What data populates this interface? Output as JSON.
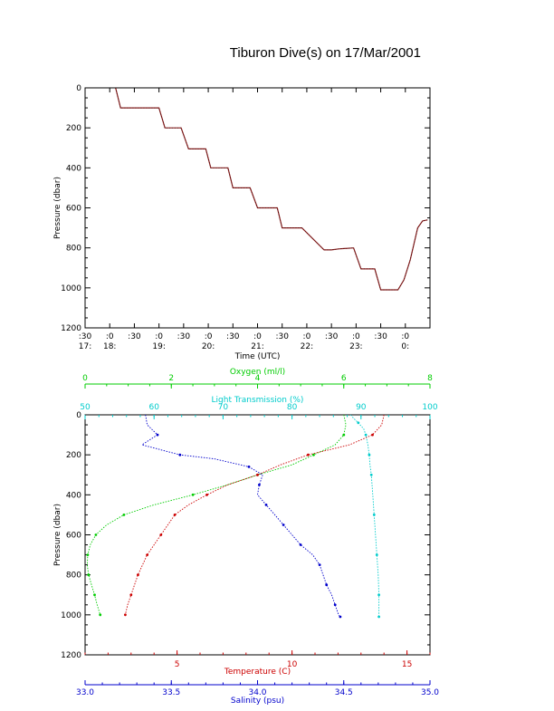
{
  "title": "Tiburon Dive(s) on 17/Mar/2001",
  "chart_data": [
    {
      "type": "line",
      "xlabel": "Time (UTC)",
      "ylabel": "Pressure (dbar)",
      "xlim": [
        "17:30",
        "00:30"
      ],
      "ylim": [
        1200,
        0
      ],
      "x_ticks": [
        {
          "top": ":30",
          "bottom": "17:"
        },
        {
          "top": ":0",
          "bottom": "18:"
        },
        {
          "top": ":30",
          "bottom": ""
        },
        {
          "top": ":0",
          "bottom": "19:"
        },
        {
          "top": ":30",
          "bottom": ""
        },
        {
          "top": ":0",
          "bottom": "20:"
        },
        {
          "top": ":30",
          "bottom": ""
        },
        {
          "top": ":0",
          "bottom": "21:"
        },
        {
          "top": ":30",
          "bottom": ""
        },
        {
          "top": ":0",
          "bottom": "22:"
        },
        {
          "top": ":30",
          "bottom": ""
        },
        {
          "top": ":0",
          "bottom": "23:"
        },
        {
          "top": ":30",
          "bottom": ""
        },
        {
          "top": ":0",
          "bottom": "0:"
        }
      ],
      "y_ticks": [
        "0",
        "200",
        "400",
        "600",
        "800",
        "1000",
        "1200"
      ],
      "series": [
        {
          "color": "#8b1a1a",
          "points": [
            [
              18.12,
              0
            ],
            [
              18.22,
              100
            ],
            [
              19.0,
              100
            ],
            [
              19.12,
              200
            ],
            [
              19.45,
              200
            ],
            [
              19.6,
              305
            ],
            [
              19.95,
              305
            ],
            [
              20.05,
              400
            ],
            [
              20.4,
              400
            ],
            [
              20.5,
              500
            ],
            [
              20.85,
              500
            ],
            [
              21.0,
              600
            ],
            [
              21.4,
              600
            ],
            [
              21.5,
              700
            ],
            [
              21.9,
              700
            ],
            [
              22.35,
              810
            ],
            [
              22.5,
              810
            ],
            [
              22.65,
              805
            ],
            [
              22.95,
              800
            ],
            [
              23.1,
              905
            ],
            [
              23.38,
              905
            ],
            [
              23.5,
              1010
            ],
            [
              23.85,
              1010
            ],
            [
              23.97,
              960
            ],
            [
              24.1,
              860
            ],
            [
              24.25,
              700
            ],
            [
              24.35,
              665
            ],
            [
              24.45,
              660
            ]
          ]
        }
      ]
    },
    {
      "type": "line",
      "ylabel": "Pressure (dbar)",
      "ylim": [
        1200,
        0
      ],
      "y_ticks": [
        "0",
        "200",
        "400",
        "600",
        "800",
        "1000",
        "1200"
      ],
      "axes": {
        "oxygen": {
          "label": "Oxygen (ml/l)",
          "color": "#00cc00",
          "range": [
            0,
            8
          ],
          "ticks": [
            "0",
            "2",
            "4",
            "6",
            "8"
          ]
        },
        "transmission": {
          "label": "Light Transmission (%)",
          "color": "#00cccc",
          "range": [
            50,
            100
          ],
          "ticks": [
            "50",
            "60",
            "70",
            "80",
            "90",
            "100"
          ]
        },
        "temperature": {
          "label": "Temperature (C)",
          "color": "#cc0000",
          "range": [
            1,
            16
          ],
          "ticks": [
            "5",
            "10",
            "15"
          ]
        },
        "salinity": {
          "label": "Salinity (psu)",
          "color": "#0000cc",
          "range": [
            33.0,
            35.0
          ],
          "ticks": [
            "33.0",
            "33.5",
            "34.0",
            "34.5",
            "35.0"
          ]
        }
      },
      "series": [
        {
          "name": "Oxygen (ml/l)",
          "axis": "oxygen",
          "color": "#00cc00",
          "points": [
            [
              6.0,
              0
            ],
            [
              6.05,
              50
            ],
            [
              6.0,
              100
            ],
            [
              5.8,
              150
            ],
            [
              5.3,
              200
            ],
            [
              4.8,
              250
            ],
            [
              4.0,
              300
            ],
            [
              3.3,
              350
            ],
            [
              2.5,
              400
            ],
            [
              1.6,
              450
            ],
            [
              0.9,
              500
            ],
            [
              0.5,
              550
            ],
            [
              0.25,
              600
            ],
            [
              0.12,
              650
            ],
            [
              0.06,
              700
            ],
            [
              0.05,
              750
            ],
            [
              0.08,
              800
            ],
            [
              0.15,
              850
            ],
            [
              0.22,
              900
            ],
            [
              0.28,
              950
            ],
            [
              0.35,
              1000
            ],
            [
              0.37,
              1010
            ]
          ]
        },
        {
          "name": "Light Transmission (%)",
          "axis": "transmission",
          "color": "#00cccc",
          "points": [
            [
              88.5,
              0
            ],
            [
              89.0,
              20
            ],
            [
              89.6,
              40
            ],
            [
              90.4,
              70
            ],
            [
              90.7,
              100
            ],
            [
              91.0,
              150
            ],
            [
              91.2,
              200
            ],
            [
              91.3,
              250
            ],
            [
              91.5,
              300
            ],
            [
              91.7,
              400
            ],
            [
              91.9,
              500
            ],
            [
              92.1,
              600
            ],
            [
              92.3,
              700
            ],
            [
              92.5,
              800
            ],
            [
              92.6,
              900
            ],
            [
              92.6,
              1000
            ],
            [
              92.6,
              1010
            ]
          ]
        },
        {
          "name": "Temperature (C)",
          "axis": "temperature",
          "color": "#cc0000",
          "points": [
            [
              14.0,
              0
            ],
            [
              13.9,
              50
            ],
            [
              13.5,
              100
            ],
            [
              12.5,
              150
            ],
            [
              10.7,
              200
            ],
            [
              9.5,
              250
            ],
            [
              8.5,
              300
            ],
            [
              7.2,
              350
            ],
            [
              6.3,
              400
            ],
            [
              5.5,
              450
            ],
            [
              4.9,
              500
            ],
            [
              4.6,
              550
            ],
            [
              4.3,
              600
            ],
            [
              4.0,
              650
            ],
            [
              3.7,
              700
            ],
            [
              3.5,
              750
            ],
            [
              3.3,
              800
            ],
            [
              3.15,
              850
            ],
            [
              3.0,
              900
            ],
            [
              2.85,
              950
            ],
            [
              2.75,
              1000
            ],
            [
              2.72,
              1010
            ]
          ]
        },
        {
          "name": "Salinity (psu)",
          "axis": "salinity",
          "color": "#0000cc",
          "points": [
            [
              33.35,
              0
            ],
            [
              33.36,
              50
            ],
            [
              33.42,
              100
            ],
            [
              33.33,
              150
            ],
            [
              33.55,
              200
            ],
            [
              33.75,
              220
            ],
            [
              33.95,
              260
            ],
            [
              34.03,
              300
            ],
            [
              34.01,
              350
            ],
            [
              34.0,
              400
            ],
            [
              34.05,
              450
            ],
            [
              34.1,
              500
            ],
            [
              34.15,
              550
            ],
            [
              34.2,
              600
            ],
            [
              34.25,
              650
            ],
            [
              34.32,
              700
            ],
            [
              34.36,
              750
            ],
            [
              34.38,
              800
            ],
            [
              34.4,
              850
            ],
            [
              34.43,
              900
            ],
            [
              34.45,
              950
            ],
            [
              34.47,
              1000
            ],
            [
              34.48,
              1010
            ]
          ]
        }
      ]
    }
  ]
}
